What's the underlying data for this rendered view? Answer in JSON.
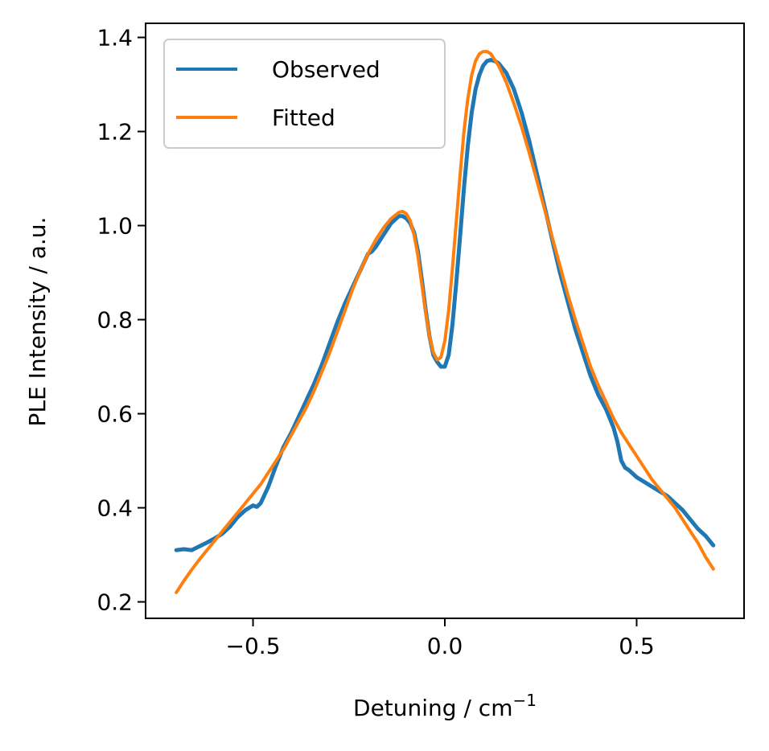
{
  "chart_data": {
    "type": "line",
    "title": "",
    "xlabel": "Detuning / cm",
    "xlabel_superscript": "−1",
    "ylabel": "PLE Intensity / a.u.",
    "xlim": [
      -0.78,
      0.78
    ],
    "ylim": [
      0.165,
      1.43
    ],
    "xticks": [
      {
        "value": -0.5,
        "label": "−0.5"
      },
      {
        "value": 0.0,
        "label": "0.0"
      },
      {
        "value": 0.5,
        "label": "0.5"
      }
    ],
    "yticks": [
      {
        "value": 0.2,
        "label": "0.2"
      },
      {
        "value": 0.4,
        "label": "0.4"
      },
      {
        "value": 0.6,
        "label": "0.6"
      },
      {
        "value": 0.8,
        "label": "0.8"
      },
      {
        "value": 1.0,
        "label": "1.0"
      },
      {
        "value": 1.2,
        "label": "1.2"
      },
      {
        "value": 1.4,
        "label": "1.4"
      }
    ],
    "grid": false,
    "legend_position": "top-left",
    "series": [
      {
        "name": "Observed",
        "color": "#1f77b4",
        "points": [
          [
            -0.7,
            0.31
          ],
          [
            -0.68,
            0.312
          ],
          [
            -0.66,
            0.31
          ],
          [
            -0.64,
            0.318
          ],
          [
            -0.62,
            0.326
          ],
          [
            -0.6,
            0.335
          ],
          [
            -0.58,
            0.345
          ],
          [
            -0.56,
            0.36
          ],
          [
            -0.54,
            0.38
          ],
          [
            -0.52,
            0.395
          ],
          [
            -0.5,
            0.405
          ],
          [
            -0.49,
            0.402
          ],
          [
            -0.48,
            0.41
          ],
          [
            -0.46,
            0.445
          ],
          [
            -0.44,
            0.49
          ],
          [
            -0.42,
            0.53
          ],
          [
            -0.4,
            0.56
          ],
          [
            -0.38,
            0.595
          ],
          [
            -0.36,
            0.63
          ],
          [
            -0.34,
            0.665
          ],
          [
            -0.32,
            0.705
          ],
          [
            -0.3,
            0.75
          ],
          [
            -0.28,
            0.795
          ],
          [
            -0.26,
            0.835
          ],
          [
            -0.24,
            0.87
          ],
          [
            -0.22,
            0.905
          ],
          [
            -0.2,
            0.94
          ],
          [
            -0.19,
            0.945
          ],
          [
            -0.18,
            0.955
          ],
          [
            -0.16,
            0.98
          ],
          [
            -0.14,
            1.005
          ],
          [
            -0.12,
            1.02
          ],
          [
            -0.11,
            1.02
          ],
          [
            -0.1,
            1.015
          ],
          [
            -0.09,
            1.005
          ],
          [
            -0.08,
            0.985
          ],
          [
            -0.07,
            0.945
          ],
          [
            -0.06,
            0.885
          ],
          [
            -0.05,
            0.82
          ],
          [
            -0.04,
            0.765
          ],
          [
            -0.03,
            0.725
          ],
          [
            -0.02,
            0.71
          ],
          [
            -0.01,
            0.7
          ],
          [
            0.0,
            0.7
          ],
          [
            0.01,
            0.725
          ],
          [
            0.02,
            0.79
          ],
          [
            0.03,
            0.88
          ],
          [
            0.04,
            0.98
          ],
          [
            0.05,
            1.08
          ],
          [
            0.06,
            1.17
          ],
          [
            0.07,
            1.24
          ],
          [
            0.08,
            1.29
          ],
          [
            0.09,
            1.32
          ],
          [
            0.1,
            1.34
          ],
          [
            0.11,
            1.35
          ],
          [
            0.12,
            1.352
          ],
          [
            0.13,
            1.35
          ],
          [
            0.14,
            1.345
          ],
          [
            0.16,
            1.325
          ],
          [
            0.18,
            1.29
          ],
          [
            0.2,
            1.24
          ],
          [
            0.22,
            1.18
          ],
          [
            0.24,
            1.11
          ],
          [
            0.26,
            1.04
          ],
          [
            0.28,
            0.97
          ],
          [
            0.3,
            0.9
          ],
          [
            0.32,
            0.84
          ],
          [
            0.34,
            0.78
          ],
          [
            0.36,
            0.73
          ],
          [
            0.38,
            0.68
          ],
          [
            0.4,
            0.64
          ],
          [
            0.42,
            0.61
          ],
          [
            0.44,
            0.57
          ],
          [
            0.45,
            0.54
          ],
          [
            0.46,
            0.5
          ],
          [
            0.47,
            0.485
          ],
          [
            0.48,
            0.48
          ],
          [
            0.5,
            0.465
          ],
          [
            0.52,
            0.455
          ],
          [
            0.54,
            0.445
          ],
          [
            0.56,
            0.435
          ],
          [
            0.58,
            0.425
          ],
          [
            0.6,
            0.41
          ],
          [
            0.62,
            0.395
          ],
          [
            0.64,
            0.375
          ],
          [
            0.66,
            0.355
          ],
          [
            0.68,
            0.34
          ],
          [
            0.7,
            0.32
          ]
        ]
      },
      {
        "name": "Fitted",
        "color": "#ff7f0e",
        "points": [
          [
            -0.7,
            0.22
          ],
          [
            -0.68,
            0.245
          ],
          [
            -0.66,
            0.268
          ],
          [
            -0.64,
            0.29
          ],
          [
            -0.62,
            0.31
          ],
          [
            -0.6,
            0.33
          ],
          [
            -0.58,
            0.35
          ],
          [
            -0.56,
            0.37
          ],
          [
            -0.54,
            0.39
          ],
          [
            -0.52,
            0.41
          ],
          [
            -0.5,
            0.43
          ],
          [
            -0.48,
            0.45
          ],
          [
            -0.46,
            0.475
          ],
          [
            -0.44,
            0.5
          ],
          [
            -0.42,
            0.525
          ],
          [
            -0.4,
            0.555
          ],
          [
            -0.38,
            0.585
          ],
          [
            -0.36,
            0.615
          ],
          [
            -0.34,
            0.65
          ],
          [
            -0.32,
            0.69
          ],
          [
            -0.3,
            0.73
          ],
          [
            -0.28,
            0.775
          ],
          [
            -0.26,
            0.82
          ],
          [
            -0.24,
            0.865
          ],
          [
            -0.22,
            0.905
          ],
          [
            -0.2,
            0.94
          ],
          [
            -0.18,
            0.97
          ],
          [
            -0.16,
            0.995
          ],
          [
            -0.14,
            1.015
          ],
          [
            -0.12,
            1.028
          ],
          [
            -0.11,
            1.03
          ],
          [
            -0.1,
            1.025
          ],
          [
            -0.09,
            1.01
          ],
          [
            -0.08,
            0.98
          ],
          [
            -0.07,
            0.935
          ],
          [
            -0.06,
            0.875
          ],
          [
            -0.05,
            0.815
          ],
          [
            -0.04,
            0.765
          ],
          [
            -0.03,
            0.73
          ],
          [
            -0.02,
            0.715
          ],
          [
            -0.01,
            0.72
          ],
          [
            0.0,
            0.755
          ],
          [
            0.01,
            0.82
          ],
          [
            0.02,
            0.91
          ],
          [
            0.03,
            1.01
          ],
          [
            0.04,
            1.11
          ],
          [
            0.05,
            1.2
          ],
          [
            0.06,
            1.27
          ],
          [
            0.07,
            1.32
          ],
          [
            0.08,
            1.35
          ],
          [
            0.09,
            1.365
          ],
          [
            0.1,
            1.37
          ],
          [
            0.11,
            1.37
          ],
          [
            0.12,
            1.365
          ],
          [
            0.14,
            1.34
          ],
          [
            0.16,
            1.305
          ],
          [
            0.18,
            1.26
          ],
          [
            0.2,
            1.21
          ],
          [
            0.22,
            1.155
          ],
          [
            0.24,
            1.095
          ],
          [
            0.26,
            1.035
          ],
          [
            0.28,
            0.975
          ],
          [
            0.3,
            0.915
          ],
          [
            0.32,
            0.855
          ],
          [
            0.34,
            0.8
          ],
          [
            0.36,
            0.75
          ],
          [
            0.38,
            0.7
          ],
          [
            0.4,
            0.66
          ],
          [
            0.42,
            0.625
          ],
          [
            0.44,
            0.59
          ],
          [
            0.46,
            0.56
          ],
          [
            0.48,
            0.535
          ],
          [
            0.5,
            0.51
          ],
          [
            0.52,
            0.485
          ],
          [
            0.54,
            0.46
          ],
          [
            0.56,
            0.44
          ],
          [
            0.58,
            0.42
          ],
          [
            0.6,
            0.4
          ],
          [
            0.62,
            0.375
          ],
          [
            0.64,
            0.35
          ],
          [
            0.66,
            0.325
          ],
          [
            0.68,
            0.295
          ],
          [
            0.7,
            0.27
          ]
        ]
      }
    ]
  }
}
